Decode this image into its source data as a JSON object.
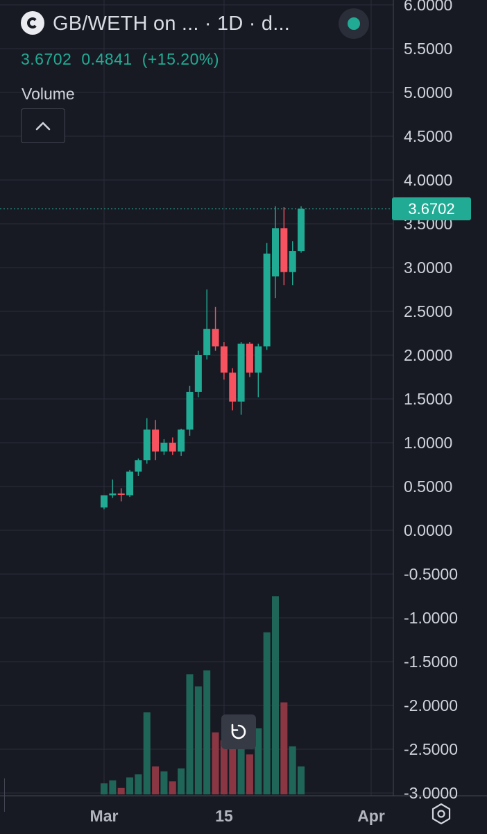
{
  "header": {
    "title": "GB/WETH on ...   · 1D · d...",
    "logo_icon": "token-logo-icon",
    "status_icon": "market-status-dot-icon",
    "last_price": "3.6702",
    "change": "0.4841",
    "change_pct": "(+15.20%)",
    "volume_label": "Volume"
  },
  "price_tag": "3.6702",
  "colors": {
    "background": "#181a23",
    "grid": "#2a2e39",
    "up": "#22ab94",
    "down": "#f7525f",
    "volume_up": "#1f6659",
    "volume_down": "#8a3643",
    "text": "#d1d4dc"
  },
  "controls": {
    "collapse_icon": "chevron-up-icon",
    "reset_icon": "reset-rotate-icon",
    "settings_icon": "settings-gear-icon"
  },
  "chart_data": {
    "type": "candlestick",
    "y_axis": {
      "ticks": [
        "6.0000",
        "5.5000",
        "5.0000",
        "4.5000",
        "4.0000",
        "3.5000",
        "3.0000",
        "2.5000",
        "2.0000",
        "1.5000",
        "1.0000",
        "0.5000",
        "0.0000",
        "-0.5000",
        "-1.0000",
        "-1.5000",
        "-2.0000",
        "-2.5000",
        "-3.0000"
      ],
      "range": [
        -3.0,
        6.0
      ]
    },
    "x_axis": {
      "ticks": [
        "Mar",
        "15",
        "Apr"
      ]
    },
    "last_price": 3.6702,
    "candles": [
      {
        "o": 0.26,
        "h": 0.4,
        "l": 0.24,
        "c": 0.4
      },
      {
        "o": 0.4,
        "h": 0.58,
        "l": 0.37,
        "c": 0.42
      },
      {
        "o": 0.42,
        "h": 0.48,
        "l": 0.33,
        "c": 0.41
      },
      {
        "o": 0.4,
        "h": 0.69,
        "l": 0.38,
        "c": 0.67
      },
      {
        "o": 0.67,
        "h": 0.82,
        "l": 0.62,
        "c": 0.8
      },
      {
        "o": 0.8,
        "h": 1.28,
        "l": 0.76,
        "c": 1.15
      },
      {
        "o": 1.15,
        "h": 1.26,
        "l": 0.8,
        "c": 0.9
      },
      {
        "o": 0.9,
        "h": 1.04,
        "l": 0.86,
        "c": 1.0
      },
      {
        "o": 1.0,
        "h": 1.06,
        "l": 0.86,
        "c": 0.9
      },
      {
        "o": 0.9,
        "h": 1.16,
        "l": 0.85,
        "c": 1.15
      },
      {
        "o": 1.15,
        "h": 1.65,
        "l": 1.08,
        "c": 1.58
      },
      {
        "o": 1.58,
        "h": 2.05,
        "l": 1.52,
        "c": 2.0
      },
      {
        "o": 2.0,
        "h": 2.75,
        "l": 1.95,
        "c": 2.3
      },
      {
        "o": 2.3,
        "h": 2.55,
        "l": 2.05,
        "c": 2.1
      },
      {
        "o": 2.1,
        "h": 2.15,
        "l": 1.72,
        "c": 1.8
      },
      {
        "o": 1.8,
        "h": 1.85,
        "l": 1.37,
        "c": 1.47
      },
      {
        "o": 1.47,
        "h": 2.15,
        "l": 1.32,
        "c": 2.13
      },
      {
        "o": 2.13,
        "h": 2.15,
        "l": 1.75,
        "c": 1.8
      },
      {
        "o": 1.8,
        "h": 2.13,
        "l": 1.52,
        "c": 2.1
      },
      {
        "o": 2.1,
        "h": 3.28,
        "l": 2.06,
        "c": 3.16
      },
      {
        "o": 2.9,
        "h": 3.7,
        "l": 2.65,
        "c": 3.45
      },
      {
        "o": 3.45,
        "h": 3.69,
        "l": 2.8,
        "c": 2.95
      },
      {
        "o": 2.95,
        "h": 3.3,
        "l": 2.8,
        "c": 3.19
      },
      {
        "o": 3.19,
        "h": 3.7,
        "l": 3.17,
        "c": 3.67
      }
    ],
    "volume": [
      0.55,
      0.7,
      0.32,
      0.85,
      1.0,
      4.1,
      1.4,
      1.15,
      0.65,
      1.3,
      6.0,
      5.4,
      6.2,
      3.1,
      2.7,
      2.4,
      3.0,
      2.0,
      3.3,
      8.1,
      9.9,
      4.6,
      2.4,
      1.4
    ]
  }
}
